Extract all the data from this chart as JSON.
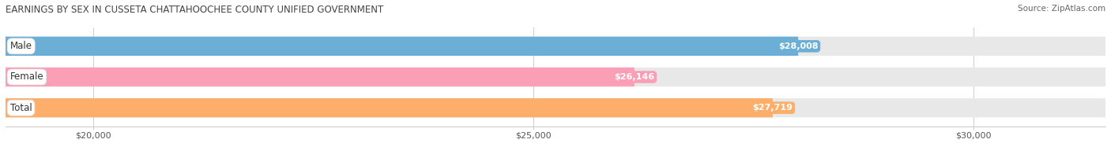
{
  "title": "EARNINGS BY SEX IN CUSSETA CHATTAHOOCHEE COUNTY UNIFIED GOVERNMENT",
  "source": "Source: ZipAtlas.com",
  "categories": [
    "Male",
    "Female",
    "Total"
  ],
  "values": [
    28008,
    26146,
    27719
  ],
  "bar_colors": [
    "#6baed6",
    "#fa9fb5",
    "#fdae6b"
  ],
  "bar_bg_color": "#e8e8e8",
  "value_labels": [
    "$28,008",
    "$26,146",
    "$27,719"
  ],
  "xlim_min": 19000,
  "xlim_max": 31500,
  "xticks": [
    20000,
    25000,
    30000
  ],
  "xtick_labels": [
    "$20,000",
    "$25,000",
    "$30,000"
  ],
  "title_fontsize": 8.5,
  "source_fontsize": 7.5,
  "label_fontsize": 8.5,
  "value_fontsize": 8.0,
  "tick_fontsize": 8.0,
  "background_color": "#ffffff",
  "bar_height": 0.62,
  "rounding_size": 0.3
}
